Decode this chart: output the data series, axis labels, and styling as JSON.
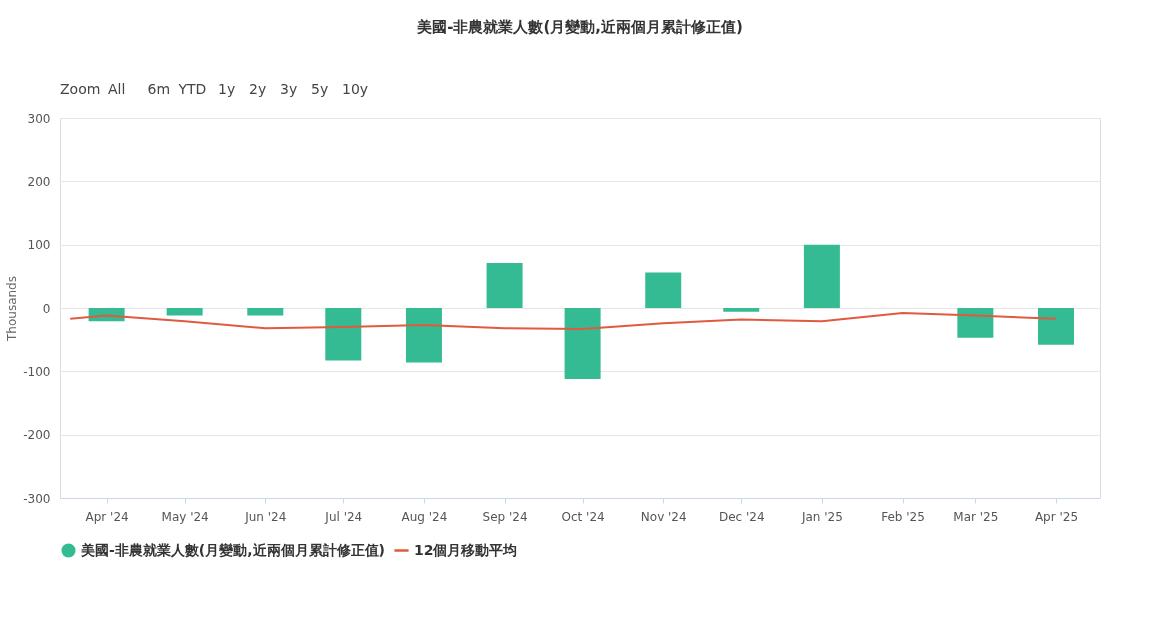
{
  "chart_data": {
    "type": "bar",
    "title": "美國-非農就業人數(月變動,近兩個月累計修正值)",
    "ylabel": "Thousands",
    "annotations": [
      "Zoom",
      "All",
      "6m",
      "YTD",
      "1y",
      "2y",
      "3y",
      "5y",
      "10y"
    ],
    "series": [
      {
        "name": "美國-非農就業人數(月變動,近兩個月累計修正值)",
        "color": "#34bb93",
        "x": [
          "2024-04-01",
          "2024-05-01",
          "2024-06-01",
          "2024-07-01",
          "2024-08-01",
          "2024-09-01",
          "2024-10-01",
          "2024-11-01",
          "2024-12-01",
          "2025-01-01",
          "2025-02-01",
          "2025-03-01",
          "2025-04-01"
        ],
        "values": [
          -21,
          -12,
          -12,
          -83,
          -86,
          71,
          -112,
          56,
          -6,
          100,
          null,
          -47,
          -58
        ]
      },
      {
        "name": "12個月移動平均",
        "type": "line",
        "color": "#e05a3f",
        "x": [
          "2024-03-18",
          "2024-04-01",
          "2024-05-01",
          "2024-06-01",
          "2024-07-01",
          "2024-08-01",
          "2024-09-01",
          "2024-10-01",
          "2024-11-01",
          "2024-12-01",
          "2025-01-01",
          "2025-02-01",
          "2025-03-01",
          "2025-04-01"
        ],
        "values": [
          -17,
          -12,
          -21,
          -32,
          -30,
          -27,
          -32,
          -33,
          -24,
          -18,
          -21,
          -8,
          -12,
          -17
        ]
      }
    ],
    "xlim": [
      "2024-03-16",
      "2025-04-16"
    ],
    "xticks": [
      {
        "value": "2024-04-01",
        "label": "Apr '24"
      },
      {
        "value": "2024-05-01",
        "label": "May '24"
      },
      {
        "value": "2024-06-01",
        "label": "Jun '24"
      },
      {
        "value": "2024-07-01",
        "label": "Jul '24"
      },
      {
        "value": "2024-08-01",
        "label": "Aug '24"
      },
      {
        "value": "2024-09-01",
        "label": "Sep '24"
      },
      {
        "value": "2024-10-01",
        "label": "Oct '24"
      },
      {
        "value": "2024-11-01",
        "label": "Nov '24"
      },
      {
        "value": "2024-12-01",
        "label": "Dec '24"
      },
      {
        "value": "2025-01-01",
        "label": "Jan '25"
      },
      {
        "value": "2025-02-01",
        "label": "Feb '25"
      },
      {
        "value": "2025-03-01",
        "label": "Mar '25"
      },
      {
        "value": "2025-04-01",
        "label": "Apr '25"
      }
    ],
    "ylim": [
      -300,
      300
    ],
    "yticks": [
      -300,
      -200,
      -100,
      0,
      100,
      200,
      300
    ],
    "grid": "y",
    "legend": "bottom"
  }
}
